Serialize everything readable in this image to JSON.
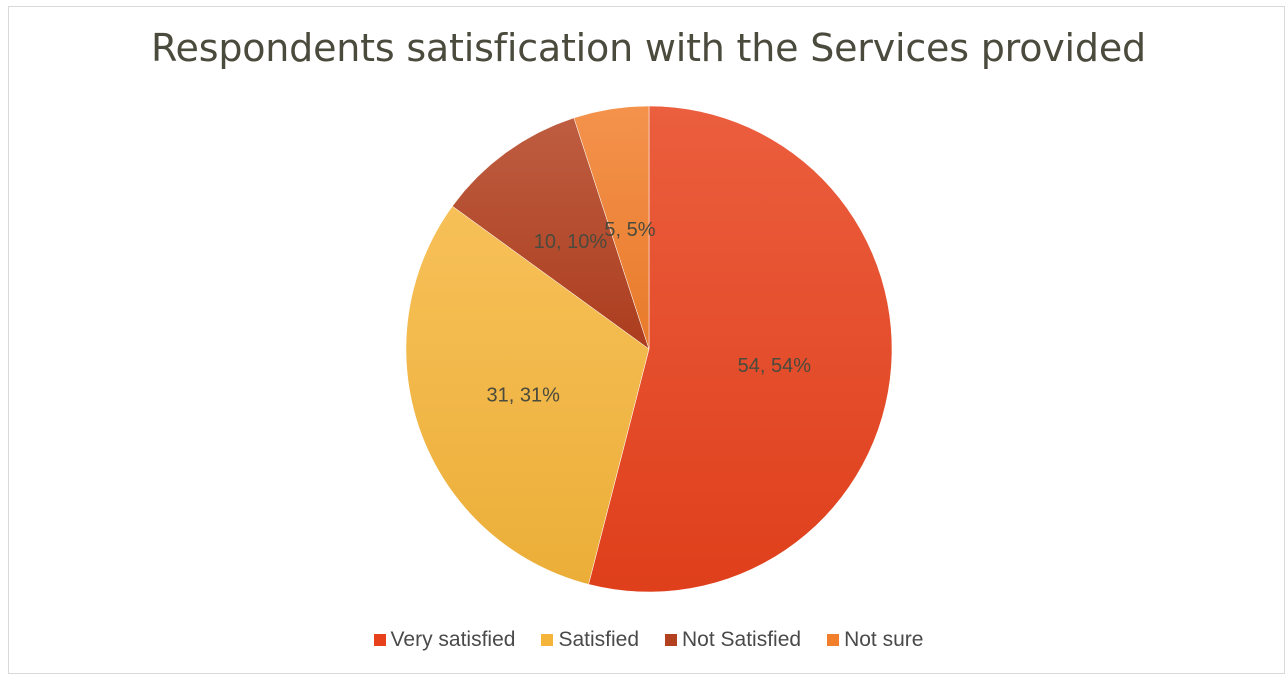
{
  "chart_data": {
    "type": "pie",
    "title": "Respondents satisfication with the Services provided",
    "categories": [
      "Very satisfied",
      "Satisfied",
      "Not Satisfied",
      "Not sure"
    ],
    "values": [
      54,
      31,
      10,
      5
    ],
    "data_labels": [
      "54, 54%",
      "31, 31%",
      "10, 10%",
      "5, 5%"
    ],
    "colors": [
      "#e8421c",
      "#f5b53a",
      "#b3401f",
      "#f27f2c"
    ],
    "legend_position": "bottom"
  }
}
